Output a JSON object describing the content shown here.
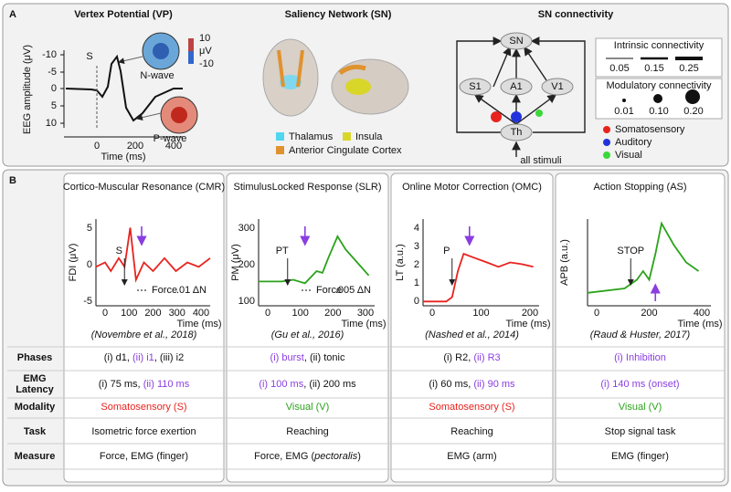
{
  "panel_a": {
    "label": "A",
    "vp": {
      "title": "Vertex Potential (VP)",
      "y_label": "EEG amplitude (μV)",
      "y_ticks": [
        "-10",
        "-5",
        "0",
        "5",
        "10"
      ],
      "x_ticks": [
        "0",
        "200",
        "400"
      ],
      "x_label": "Time (ms)",
      "stimulus": "S",
      "n_wave": "N-wave",
      "p_wave": "P-wave",
      "colorbar_max": "10",
      "colorbar_min": "-10",
      "colorbar_unit": "μV"
    },
    "sn": {
      "title": "Saliency Network (SN)",
      "legend": [
        {
          "name": "Thalamus",
          "color": "#4fd6f0"
        },
        {
          "name": "Insula",
          "color": "#d9d62a"
        },
        {
          "name": "Anterior Cingulate Cortex",
          "color": "#e0922e"
        }
      ]
    },
    "conn": {
      "title": "SN connectivity",
      "nodes": [
        "SN",
        "S1",
        "A1",
        "V1",
        "Th"
      ],
      "input": "all stimuli",
      "intrinsic": {
        "title": "Intrinsic connectivity",
        "values": [
          "0.05",
          "0.15",
          "0.25"
        ]
      },
      "modulatory": {
        "title": "Modulatory connectivity",
        "values": [
          "0.01",
          "0.10",
          "0.20"
        ]
      },
      "legend": [
        {
          "name": "Somatosensory",
          "color": "#e8231e"
        },
        {
          "name": "Auditory",
          "color": "#2233dd"
        },
        {
          "name": "Visual",
          "color": "#3ad83a"
        }
      ]
    }
  },
  "panel_b": {
    "label": "B",
    "columns": [
      {
        "title": "Cortico-Muscular Resonance (CMR)",
        "y_label": "FDI (μV)",
        "y_ticks": [
          "5",
          "0",
          "-5"
        ],
        "x_ticks": [
          "0",
          "100",
          "200",
          "300",
          "400"
        ],
        "x_label": "Time (ms)",
        "marker": "S",
        "force": "Force",
        "scale": ".01 ΔN",
        "citation": "(Novembre et al., 2018)",
        "color": "#e8231e"
      },
      {
        "title": "StimulusLocked Response (SLR)",
        "y_label": "PM (μV)",
        "y_ticks": [
          "300",
          "200",
          "100"
        ],
        "x_ticks": [
          "0",
          "100",
          "200",
          "300"
        ],
        "x_label": "Time (ms)",
        "marker": "PT",
        "force": "Force",
        "scale": ".005 ΔN",
        "citation": "(Gu et al., 2016)",
        "color": "#2aa31a"
      },
      {
        "title": "Online Motor Correction (OMC)",
        "y_label": "LT (a.u.)",
        "y_ticks": [
          "4",
          "3",
          "2",
          "1",
          "0"
        ],
        "x_ticks": [
          "0",
          "100",
          "200"
        ],
        "x_label": "Time (ms)",
        "marker": "P",
        "citation": "(Nashed et al., 2014)",
        "color": "#e8231e"
      },
      {
        "title": "Action Stopping (AS)",
        "y_label": "APB (a.u.)",
        "y_ticks": [],
        "x_ticks": [
          "0",
          "200",
          "400"
        ],
        "x_label": "Time (ms)",
        "marker": "STOP",
        "citation": "(Raud & Huster, 2017)",
        "color": "#2aa31a"
      }
    ],
    "row_labels": [
      [
        "Phases"
      ],
      [
        "EMG",
        "Latency"
      ],
      [
        "Modality"
      ],
      [
        "Task"
      ],
      [
        "Measure"
      ]
    ],
    "rows": [
      [
        [
          {
            "text": "(i) d1, ",
            "color": "#111"
          },
          {
            "text": "(ii) i1",
            "color": "#8a3ee0"
          },
          {
            "text": ", (iii) i2",
            "color": "#111"
          }
        ],
        [
          {
            "text": "(i) burst",
            "color": "#8a3ee0"
          },
          {
            "text": ", (ii) tonic",
            "color": "#111"
          }
        ],
        [
          {
            "text": "(i) R2, ",
            "color": "#111"
          },
          {
            "text": "(ii) R3",
            "color": "#8a3ee0"
          }
        ],
        [
          {
            "text": "(i) Inhibition",
            "color": "#8a3ee0"
          }
        ]
      ],
      [
        [
          {
            "text": "(i) 75 ms, ",
            "color": "#111"
          },
          {
            "text": "(ii) 110 ms",
            "color": "#8a3ee0"
          }
        ],
        [
          {
            "text": "(i) 100 ms",
            "color": "#8a3ee0"
          },
          {
            "text": ", (ii) 200 ms",
            "color": "#111"
          }
        ],
        [
          {
            "text": "(i) 60 ms, ",
            "color": "#111"
          },
          {
            "text": "(ii) 90 ms",
            "color": "#8a3ee0"
          }
        ],
        [
          {
            "text": "(i) 140 ms (onset)",
            "color": "#8a3ee0"
          }
        ]
      ],
      [
        [
          {
            "text": "Somatosensory (S)",
            "color": "#e8231e"
          }
        ],
        [
          {
            "text": "Visual (V)",
            "color": "#2aa31a"
          }
        ],
        [
          {
            "text": "Somatosensory (S)",
            "color": "#e8231e"
          }
        ],
        [
          {
            "text": "Visual (V)",
            "color": "#2aa31a"
          }
        ]
      ],
      [
        [
          {
            "text": "Isometric force exertion",
            "color": "#111"
          }
        ],
        [
          {
            "text": "Reaching",
            "color": "#111"
          }
        ],
        [
          {
            "text": "Reaching",
            "color": "#111"
          }
        ],
        [
          {
            "text": "Stop signal task",
            "color": "#111"
          }
        ]
      ],
      [
        [
          {
            "text": "Force, EMG (finger)",
            "color": "#111"
          }
        ],
        [
          {
            "text": "Force, EMG (",
            "color": "#111"
          },
          {
            "text": "pectoralis",
            "color": "#111",
            "style": "italic"
          },
          {
            "text": ")",
            "color": "#111"
          }
        ],
        [
          {
            "text": "EMG (arm)",
            "color": "#111"
          }
        ],
        [
          {
            "text": "EMG (finger)",
            "color": "#111"
          }
        ]
      ]
    ]
  }
}
